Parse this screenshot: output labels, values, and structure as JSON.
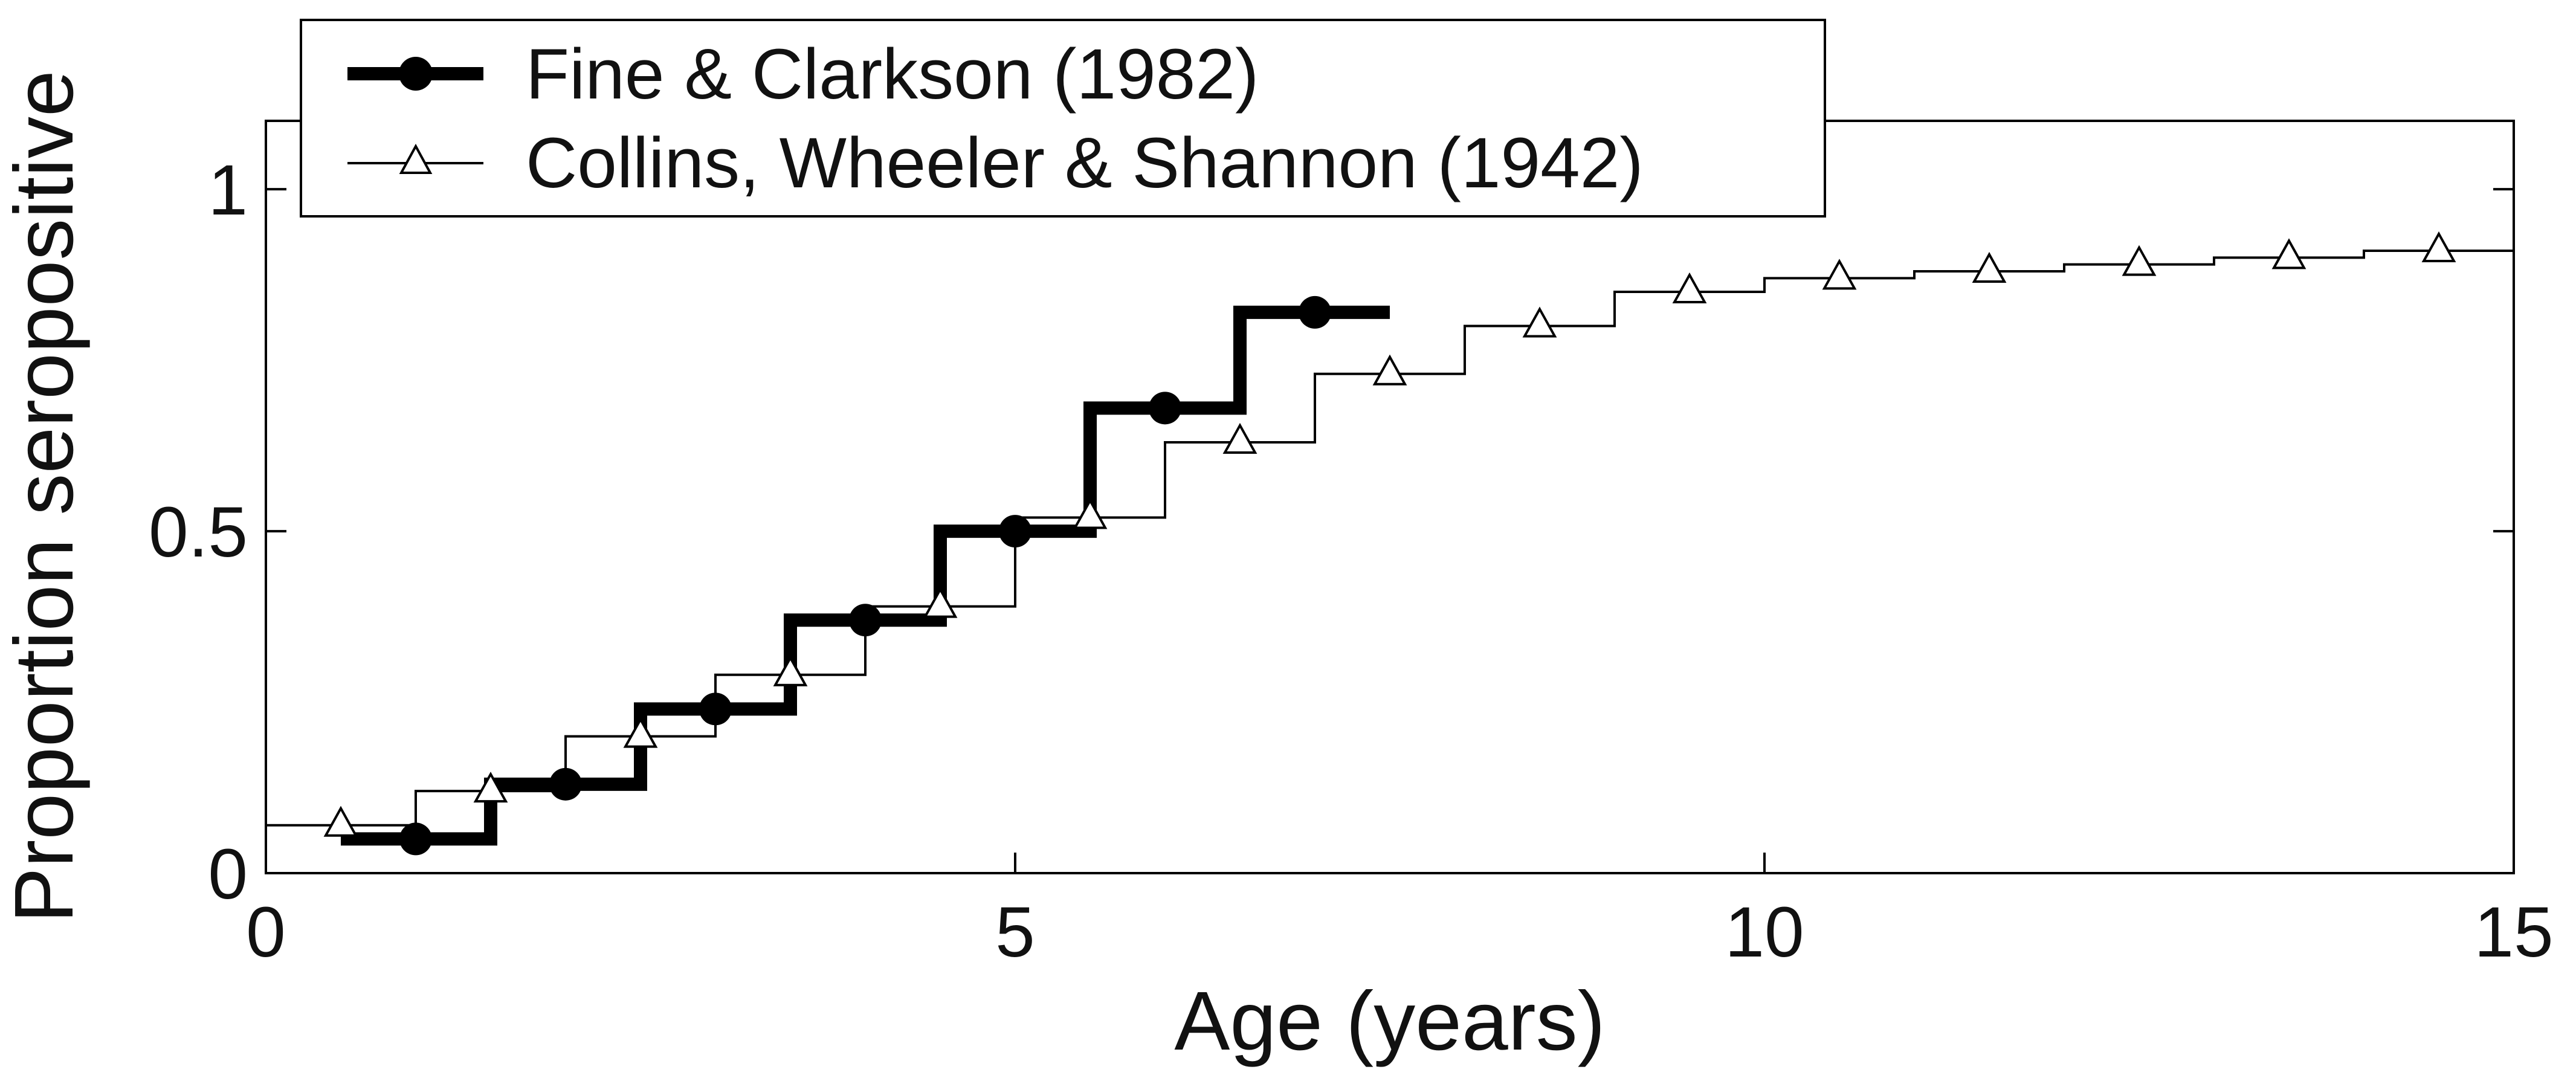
{
  "chart_data": {
    "type": "line",
    "title": "",
    "xlabel": "Age (years)",
    "ylabel": "Proportion seropositive",
    "xlim": [
      0,
      15
    ],
    "ylim": [
      0,
      1.1
    ],
    "xticks": [
      0,
      5,
      10,
      15
    ],
    "xtick_labels": [
      "0",
      "5",
      "10",
      "15"
    ],
    "yticks": [
      0,
      0.5,
      1
    ],
    "ytick_labels": [
      "0",
      "0.5",
      "1"
    ],
    "grid": false,
    "legend_position": "top-left",
    "step": true,
    "series": [
      {
        "name": "Fine & Clarkson (1982)",
        "color": "#000000",
        "marker": "filled-circle",
        "line_style": "thick",
        "x": [
          1,
          2,
          3,
          4,
          5,
          6,
          7
        ],
        "y": [
          0.05,
          0.13,
          0.24,
          0.37,
          0.5,
          0.68,
          0.82
        ]
      },
      {
        "name": "Collins, Wheeler & Shannon (1942)",
        "color": "#000000",
        "marker": "open-triangle",
        "line_style": "thin",
        "x": [
          0.5,
          1.5,
          2.5,
          3.5,
          4.5,
          5.5,
          6.5,
          7.5,
          8.5,
          9.5,
          10.5,
          11.5,
          12.5,
          13.5,
          14.5
        ],
        "y": [
          0.07,
          0.12,
          0.2,
          0.29,
          0.39,
          0.52,
          0.63,
          0.73,
          0.8,
          0.85,
          0.87,
          0.88,
          0.89,
          0.9,
          0.91
        ]
      }
    ]
  }
}
